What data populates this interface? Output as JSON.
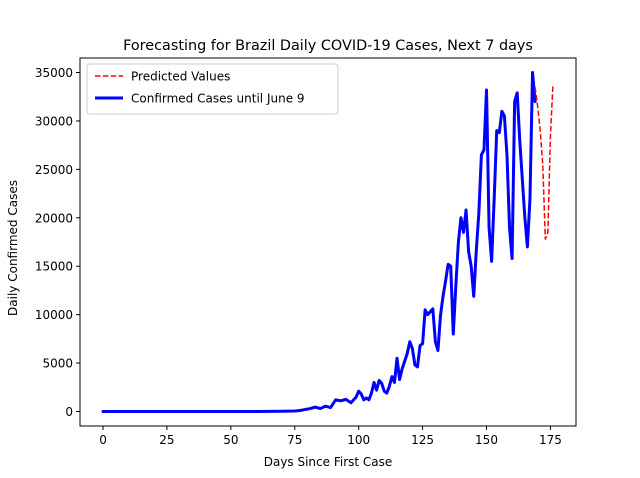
{
  "chart_data": {
    "type": "line",
    "title": "Forecasting for Brazil Daily COVID-19 Cases, Next 7 days",
    "xlabel": "Days Since First Case",
    "ylabel": "Daily Confirmed Cases",
    "xlim": [
      -9,
      185
    ],
    "ylim": [
      -1500,
      36500
    ],
    "xticks": [
      0,
      25,
      50,
      75,
      100,
      125,
      150,
      175
    ],
    "yticks": [
      0,
      5000,
      10000,
      15000,
      20000,
      25000,
      30000,
      35000
    ],
    "grid": false,
    "legend_position": "top-left",
    "series": [
      {
        "name": "Predicted Values",
        "color": "#ff0000",
        "style": "dashed",
        "x": [
          169,
          170,
          171,
          172,
          173,
          174,
          175,
          176
        ],
        "y": [
          33500,
          31500,
          29000,
          25500,
          17800,
          18500,
          28500,
          33800
        ]
      },
      {
        "name": "Confirmed Cases until June 9",
        "color": "#0000ff",
        "style": "solid",
        "x": [
          0,
          10,
          20,
          30,
          40,
          50,
          60,
          70,
          75,
          77,
          79,
          81,
          83,
          85,
          87,
          89,
          91,
          93,
          95,
          97,
          99,
          100,
          101,
          102,
          103,
          104,
          105,
          106,
          107,
          108,
          109,
          110,
          111,
          112,
          113,
          114,
          115,
          116,
          117,
          118,
          119,
          120,
          121,
          122,
          123,
          124,
          125,
          126,
          127,
          128,
          129,
          130,
          131,
          132,
          133,
          134,
          135,
          136,
          137,
          138,
          139,
          140,
          141,
          142,
          143,
          144,
          145,
          146,
          147,
          148,
          149,
          150,
          151,
          152,
          153,
          154,
          155,
          156,
          157,
          158,
          159,
          160,
          161,
          162,
          163,
          164,
          165,
          166,
          167,
          168,
          169
        ],
        "y": [
          0,
          0,
          0,
          0,
          0,
          0,
          0,
          20,
          50,
          100,
          200,
          300,
          450,
          300,
          550,
          400,
          1200,
          1100,
          1250,
          900,
          1500,
          2100,
          1800,
          1200,
          1400,
          1200,
          1900,
          3000,
          2200,
          3200,
          2900,
          2100,
          1900,
          2600,
          3600,
          3000,
          5500,
          3300,
          4400,
          5200,
          6000,
          7200,
          6500,
          4800,
          4600,
          6800,
          7000,
          10500,
          10000,
          10300,
          10600,
          7200,
          6300,
          9900,
          11900,
          13500,
          15200,
          15000,
          8000,
          13000,
          17500,
          20000,
          18500,
          20800,
          16500,
          15000,
          11900,
          16600,
          20500,
          26500,
          27000,
          33200,
          19000,
          15500,
          22000,
          29000,
          28800,
          31000,
          30500,
          26500,
          19000,
          15800,
          32000,
          32900,
          28000,
          24000,
          20000,
          17000,
          22000,
          35000,
          32000
        ]
      }
    ]
  }
}
